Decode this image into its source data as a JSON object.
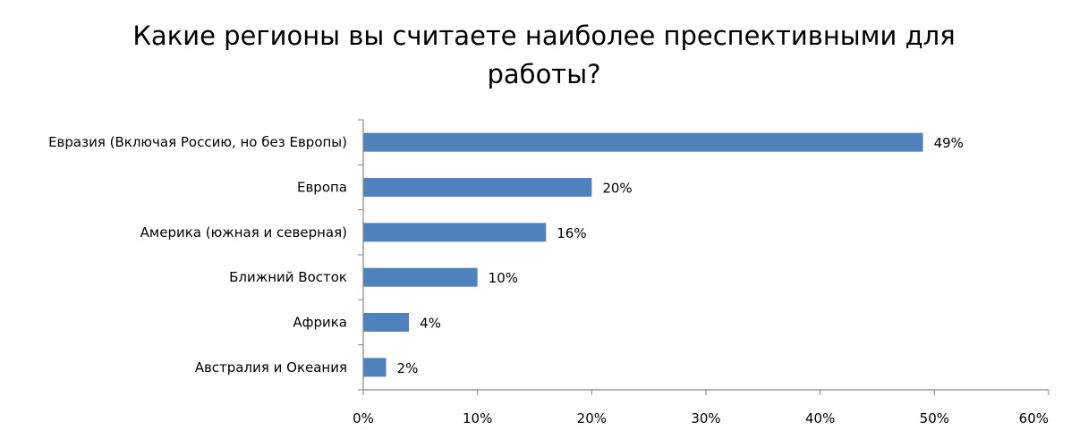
{
  "chart_data": {
    "type": "bar",
    "orientation": "horizontal",
    "title_lines": [
      "Какие регионы вы считаете наиболее преспективными для",
      "работы?"
    ],
    "categories": [
      "Евразия (Включая Россию, но без Европы)",
      "Европа",
      "Америка (южная и северная)",
      "Ближний Восток",
      "Африка",
      "Австралия и Океания"
    ],
    "values": [
      49,
      20,
      16,
      10,
      4,
      2
    ],
    "data_labels": [
      "49%",
      "20%",
      "16%",
      "10%",
      "4%",
      "2%"
    ],
    "xlim": [
      0,
      60
    ],
    "x_ticks": [
      0,
      10,
      20,
      30,
      40,
      50,
      60
    ],
    "x_tick_labels": [
      "0%",
      "10%",
      "20%",
      "30%",
      "40%",
      "50%",
      "60%"
    ],
    "grid": false,
    "legend": "none",
    "bar_color": "#4F81BD",
    "axis_color": "#868686"
  }
}
